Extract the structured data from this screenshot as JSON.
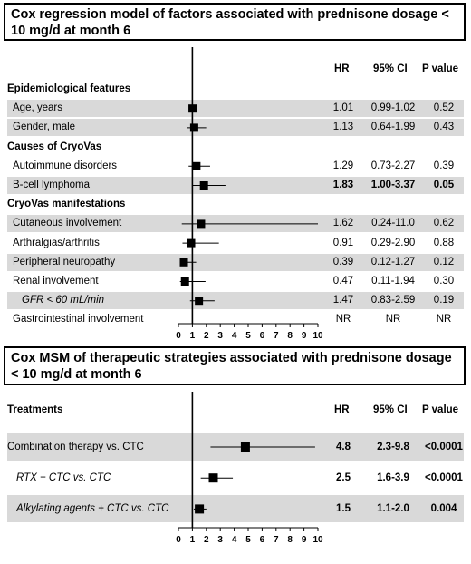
{
  "panel1": {
    "title": "Cox regression model of factors associated with prednisone dosage < 10 mg/d at month 6",
    "headers": {
      "hr": "HR",
      "ci": "95% CI",
      "p": "P value"
    },
    "chart_data": {
      "type": "forest",
      "x_ticks": [
        "0",
        "1",
        "2",
        "3",
        "4",
        "5",
        "6",
        "7",
        "8",
        "9",
        "10"
      ],
      "xlim": [
        0,
        10
      ],
      "reference_line": 1,
      "rows": [
        {
          "kind": "section",
          "label": "Epidemiological features"
        },
        {
          "kind": "item",
          "label": "Age, years",
          "hr": 1.01,
          "lo": 0.99,
          "hi": 1.02,
          "hr_text": "1.01",
          "ci_text": "0.99-1.02",
          "p_text": "0.52",
          "shaded": true,
          "bold": false,
          "italic": false,
          "indent": false
        },
        {
          "kind": "item",
          "label": "Gender, male",
          "hr": 1.13,
          "lo": 0.64,
          "hi": 1.99,
          "hr_text": "1.13",
          "ci_text": "0.64-1.99",
          "p_text": "0.43",
          "shaded": true,
          "bold": false,
          "italic": false,
          "indent": false
        },
        {
          "kind": "section",
          "label": "Causes of CryoVas"
        },
        {
          "kind": "item",
          "label": "Autoimmune disorders",
          "hr": 1.29,
          "lo": 0.73,
          "hi": 2.27,
          "hr_text": "1.29",
          "ci_text": "0.73-2.27",
          "p_text": "0.39",
          "shaded": false,
          "bold": false,
          "italic": false,
          "indent": false
        },
        {
          "kind": "item",
          "label": "B-cell lymphoma",
          "hr": 1.83,
          "lo": 1.0,
          "hi": 3.37,
          "hr_text": "1.83",
          "ci_text": "1.00-3.37",
          "p_text": "0.05",
          "shaded": true,
          "bold": true,
          "italic": false,
          "indent": false
        },
        {
          "kind": "section",
          "label": "CryoVas manifestations"
        },
        {
          "kind": "item",
          "label": "Cutaneous involvement",
          "hr": 1.62,
          "lo": 0.24,
          "hi": 11.0,
          "hr_text": "1.62",
          "ci_text": "0.24-11.0",
          "p_text": "0.62",
          "shaded": true,
          "bold": false,
          "italic": false,
          "indent": false
        },
        {
          "kind": "item",
          "label": "Arthralgias/arthritis",
          "hr": 0.91,
          "lo": 0.29,
          "hi": 2.9,
          "hr_text": "0.91",
          "ci_text": "0.29-2.90",
          "p_text": "0.88",
          "shaded": false,
          "bold": false,
          "italic": false,
          "indent": false
        },
        {
          "kind": "item",
          "label": "Peripheral neuropathy",
          "hr": 0.39,
          "lo": 0.12,
          "hi": 1.27,
          "hr_text": "0.39",
          "ci_text": "0.12-1.27",
          "p_text": "0.12",
          "shaded": true,
          "bold": false,
          "italic": false,
          "indent": false
        },
        {
          "kind": "item",
          "label": "Renal involvement",
          "hr": 0.47,
          "lo": 0.11,
          "hi": 1.94,
          "hr_text": "0.47",
          "ci_text": "0.11-1.94",
          "p_text": "0.30",
          "shaded": false,
          "bold": false,
          "italic": false,
          "indent": false
        },
        {
          "kind": "item",
          "label": "GFR < 60 mL/min",
          "hr": 1.47,
          "lo": 0.83,
          "hi": 2.59,
          "hr_text": "1.47",
          "ci_text": "0.83-2.59",
          "p_text": "0.19",
          "shaded": true,
          "bold": false,
          "italic": true,
          "indent": true
        },
        {
          "kind": "item",
          "label": "Gastrointestinal involvement",
          "hr": null,
          "lo": null,
          "hi": null,
          "hr_text": "NR",
          "ci_text": "NR",
          "p_text": "NR",
          "shaded": false,
          "bold": false,
          "italic": false,
          "indent": false
        }
      ]
    }
  },
  "panel2": {
    "title": "Cox MSM of therapeutic strategies associated with prednisone dosage < 10 mg/d at month 6",
    "headers": {
      "section": "Treatments",
      "hr": "HR",
      "ci": "95% CI",
      "p": "P value"
    },
    "chart_data": {
      "type": "forest",
      "x_ticks": [
        "0",
        "1",
        "2",
        "3",
        "4",
        "5",
        "6",
        "7",
        "8",
        "9",
        "10"
      ],
      "xlim": [
        0,
        10
      ],
      "reference_line": 1,
      "rows": [
        {
          "kind": "item",
          "label": "Combination therapy vs. CTC",
          "hr": 4.8,
          "lo": 2.3,
          "hi": 9.8,
          "hr_text": "4.8",
          "ci_text": "2.3-9.8",
          "p_text": "<0.0001",
          "shaded": true,
          "bold": true,
          "italic": false,
          "indent": false
        },
        {
          "kind": "item",
          "label": "RTX + CTC vs. CTC",
          "hr": 2.5,
          "lo": 1.6,
          "hi": 3.9,
          "hr_text": "2.5",
          "ci_text": "1.6-3.9",
          "p_text": "<0.0001",
          "shaded": false,
          "bold": true,
          "italic": true,
          "indent": true
        },
        {
          "kind": "item",
          "label": "Alkylating agents + CTC vs. CTC",
          "hr": 1.5,
          "lo": 1.1,
          "hi": 2.0,
          "hr_text": "1.5",
          "ci_text": "1.1-2.0",
          "p_text": "0.004",
          "shaded": true,
          "bold": true,
          "italic": true,
          "indent": true
        }
      ]
    }
  }
}
